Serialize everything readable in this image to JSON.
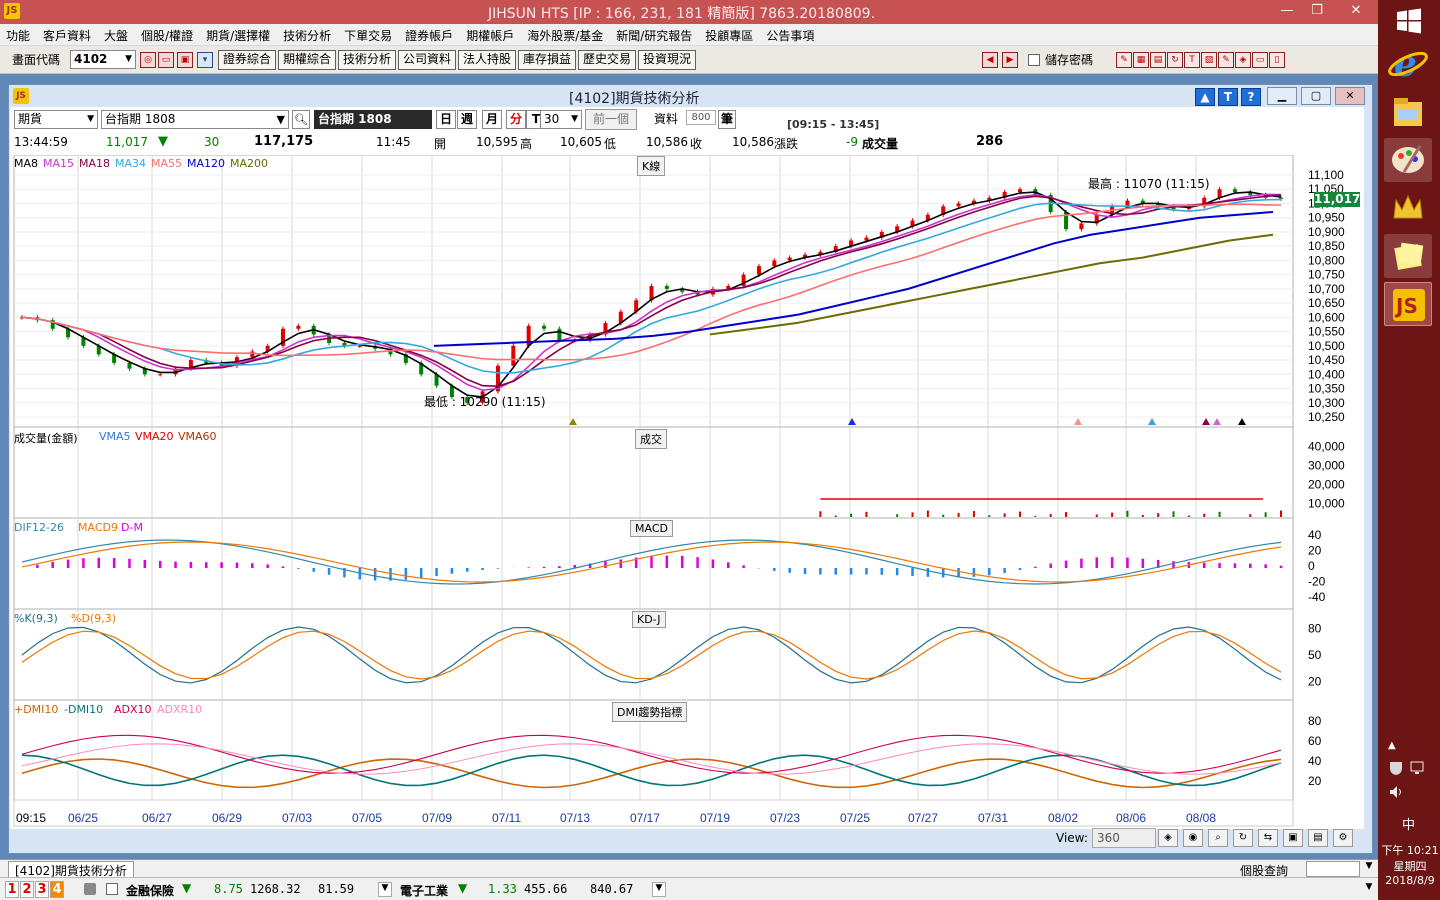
{
  "app": {
    "title": "JIHSUN HTS     [IP : 166, 231, 181 精簡版] 7863.20180809.",
    "icon": "jihsun-logo"
  },
  "menu": [
    "功能",
    "客戶資料",
    "大盤",
    "個股/權證",
    "期貨/選擇權",
    "技術分析",
    "下單交易",
    "證券帳戶",
    "期權帳戶",
    "海外股票/基金",
    "新聞/研究報告",
    "投顧專區",
    "公告事項"
  ],
  "toolbar": {
    "code_label": "畫面代碼",
    "code_value": "4102",
    "buttons": [
      "證券綜合",
      "期權綜合",
      "技術分析",
      "公司資料",
      "法人持股",
      "庫存損益",
      "歷史交易",
      "投資現況"
    ],
    "save_pwd": "儲存密碼"
  },
  "window": {
    "title": "[4102]期貨技術分析"
  },
  "controls": {
    "type": "期貨",
    "symbol": "台指期 1808",
    "name_display": "台指期 1808",
    "periods": [
      "日",
      "週",
      "月",
      "分",
      "T"
    ],
    "active_period": "分",
    "minutes": "30",
    "prev": "前一個",
    "data_label": "資料",
    "data_count": "800",
    "unit": "筆",
    "session": "[09:15 - 13:45]"
  },
  "quote": {
    "time": "13:44:59",
    "price": "11,017",
    "arrow": "▼",
    "change": "30",
    "amount": "117,175",
    "bar_time": "11:45",
    "open_l": "開",
    "open": "10,595",
    "high_l": "高",
    "high": "10,605",
    "low_l": "低",
    "low": "10,586",
    "close_l": "收",
    "close": "10,586",
    "chg_l": "漲跌",
    "chg": "-9",
    "vol_l": "成交量",
    "vol": "286"
  },
  "panels": {
    "k": {
      "title": "K線",
      "legend": [
        "MA8",
        "MA15",
        "MA18",
        "MA34",
        "MA55",
        "MA120",
        "MA200"
      ],
      "legend_colors": [
        "#000000",
        "#cc33cc",
        "#880044",
        "#33aadd",
        "#ff6e6e",
        "#0000cc",
        "#6b6b00"
      ],
      "hi_note": "最高 : 11070 (11:15)",
      "lo_note": "最低 : 10290 (11:15)",
      "yticks": [
        "11,100",
        "11,050",
        "11,000",
        "10,950",
        "10,900",
        "10,850",
        "10,800",
        "10,750",
        "10,700",
        "10,650",
        "10,600",
        "10,550",
        "10,500",
        "10,450",
        "10,400",
        "10,350",
        "10,300",
        "10,250"
      ],
      "last": "11,017"
    },
    "vol": {
      "title": "成交",
      "legend": [
        "成交量(金額)",
        "VMA5",
        "VMA20",
        "VMA60"
      ],
      "legend_colors": [
        "#000000",
        "#3377dd",
        "#dd0000",
        "#aa3300"
      ],
      "yticks": [
        "40,000",
        "30,000",
        "20,000",
        "10,000"
      ]
    },
    "macd": {
      "title": "MACD",
      "legend": [
        "DIF12-26",
        "MACD9",
        "D-M"
      ],
      "legend_colors": [
        "#3388aa",
        "#ee7700",
        "#dd00dd"
      ],
      "yticks": [
        "40",
        "20",
        "0",
        "-20",
        "-40"
      ]
    },
    "kd": {
      "title": "KD-J",
      "legend": [
        "%K(9,3)",
        "%D(9,3)"
      ],
      "legend_colors": [
        "#1f6f8b",
        "#ee7700"
      ],
      "yticks": [
        "80",
        "50",
        "20"
      ]
    },
    "dmi": {
      "title": "DMI趨勢指標",
      "legend": [
        "+DMI10",
        "-DMI10",
        "ADX10",
        "ADXR10"
      ],
      "legend_colors": [
        "#cc6600",
        "#007777",
        "#cc0055",
        "#ff88bb"
      ],
      "yticks": [
        "80",
        "60",
        "40",
        "20"
      ]
    }
  },
  "xaxis": {
    "start": "09:15",
    "dates": [
      "06/25",
      "06/27",
      "06/29",
      "07/03",
      "07/05",
      "07/09",
      "07/11",
      "07/13",
      "07/17",
      "07/19",
      "07/23",
      "07/25",
      "07/27",
      "07/31",
      "08/02",
      "08/06",
      "08/08"
    ]
  },
  "view": {
    "label": "View:",
    "value": "360"
  },
  "status": {
    "tab": "[4102]期貨技術分析",
    "query_label": "個股查詢"
  },
  "ticker": {
    "tabs": [
      "1",
      "2",
      "3",
      "4"
    ],
    "item1": "金融保險",
    "arrow1": "▼",
    "v1a": "8.75",
    "v1b": "1268.32",
    "v1c": "81.59",
    "item2": "電子工業",
    "arrow2": "▼",
    "v2a": "1.33",
    "v2b": "455.66",
    "v2c": "840.67"
  },
  "taskbar": {
    "time": "下午 10:21",
    "weekday": "星期四",
    "date": "2018/8/9",
    "ime": "中"
  },
  "chart_data": {
    "type": "line",
    "title": "[4102]期貨技術分析 台指期 1808",
    "high": 11070,
    "low": 10290,
    "last": 11017,
    "ylim": [
      10250,
      11100
    ],
    "x_labels": [
      "06/25",
      "06/27",
      "06/29",
      "07/03",
      "07/05",
      "07/09",
      "07/11",
      "07/13",
      "07/17",
      "07/19",
      "07/23",
      "07/25",
      "07/27",
      "07/31",
      "08/02",
      "08/06",
      "08/08"
    ],
    "close_series": [
      10600,
      10590,
      10560,
      10530,
      10500,
      10470,
      10440,
      10420,
      10400,
      10400,
      10420,
      10450,
      10440,
      10430,
      10460,
      10480,
      10500,
      10560,
      10570,
      10540,
      10510,
      10500,
      10500,
      10490,
      10470,
      10440,
      10400,
      10360,
      10320,
      10300,
      10340,
      10430,
      10500,
      10570,
      10560,
      10520,
      10520,
      10540,
      10580,
      10620,
      10660,
      10710,
      10700,
      10690,
      10680,
      10700,
      10710,
      10750,
      10780,
      10800,
      10810,
      10820,
      10830,
      10850,
      10870,
      10880,
      10900,
      10920,
      10940,
      10960,
      10990,
      11000,
      11010,
      11020,
      11040,
      11050,
      11030,
      10970,
      10910,
      10930,
      10960,
      10990,
      11010,
      11000,
      10990,
      10980,
      10990,
      11020,
      11050,
      11040,
      11030,
      11020,
      11017
    ],
    "ma120": [
      10500,
      10505,
      10510,
      10515,
      10520,
      10525,
      10535,
      10550,
      10570,
      10590,
      10610,
      10640,
      10670,
      10700,
      10740,
      10780,
      10820,
      10860,
      10890,
      10910,
      10930,
      10950,
      10960,
      10970
    ],
    "ma200": [
      10540,
      10560,
      10580,
      10610,
      10640,
      10670,
      10700,
      10730,
      10760,
      10790,
      10810,
      10840,
      10870,
      10890
    ]
  }
}
